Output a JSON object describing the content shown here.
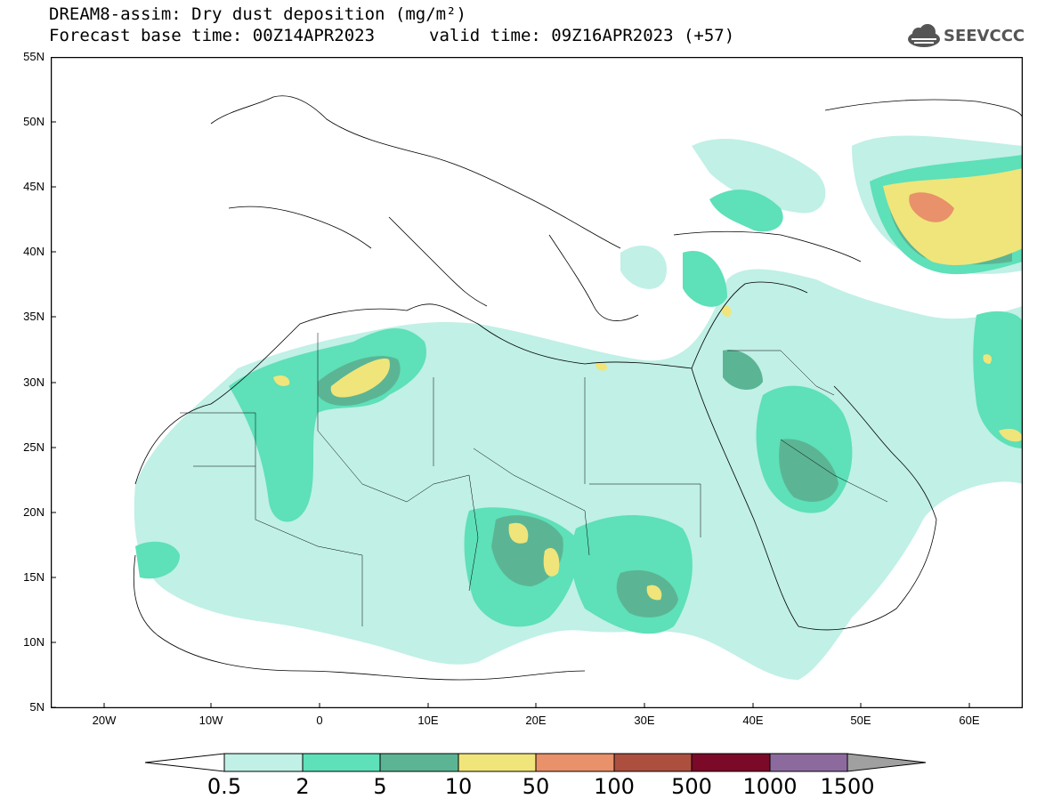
{
  "header": {
    "title_line1": "DREAM8-assim: Dry dust deposition (mg/m²)",
    "title_line2a": "Forecast base time: 00Z14APR2023",
    "title_line2b": "valid time: 09Z16APR2023 (+57)",
    "logo_text": "SEEVCCC"
  },
  "map": {
    "lat_labels": [
      "55N",
      "50N",
      "45N",
      "40N",
      "35N",
      "30N",
      "25N",
      "20N",
      "15N",
      "10N",
      "5N"
    ],
    "lon_labels": [
      "20W",
      "10W",
      "0",
      "10E",
      "20E",
      "30E",
      "40E",
      "50E",
      "60E"
    ]
  },
  "colorbar": {
    "labels": [
      "0.5",
      "2",
      "5",
      "10",
      "50",
      "100",
      "500",
      "1000",
      "1500"
    ],
    "colors": [
      "#c0f0e6",
      "#5ee0b8",
      "#5bb594",
      "#f0e57a",
      "#e8916a",
      "#ad4f3f",
      "#7a0a28",
      "#8c6a9e",
      "#a0a0a0"
    ]
  },
  "colors": {
    "level_0_5": "#c0f0e6",
    "level_2": "#5ee0b8",
    "level_5": "#5bb594",
    "level_10": "#f0e57a",
    "level_50": "#e8916a"
  }
}
